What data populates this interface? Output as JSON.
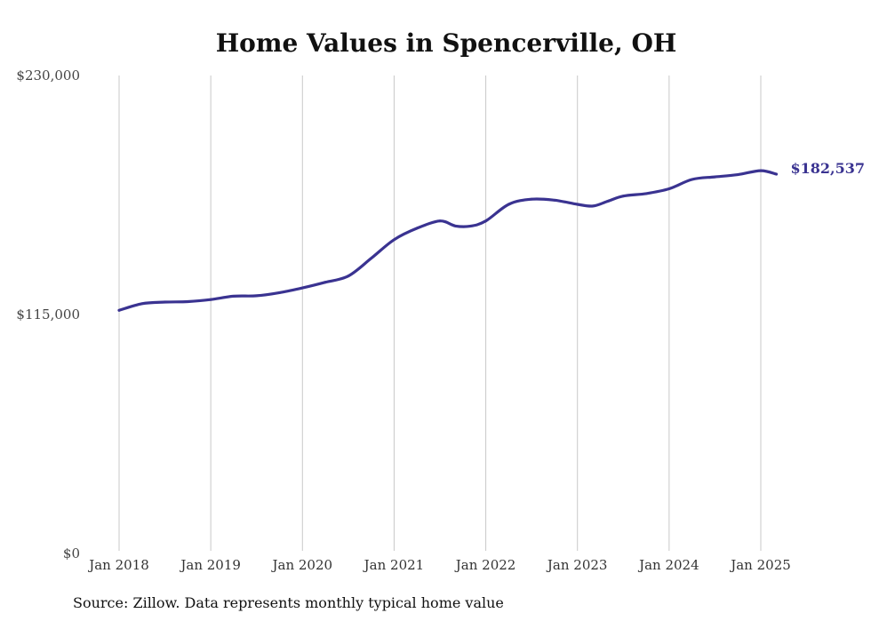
{
  "chart_data": {
    "type": "line",
    "title": "Home Values in Spencerville, OH",
    "xlabel": "",
    "ylabel": "",
    "ylim": [
      0,
      230000
    ],
    "y_ticks": [
      {
        "value": 0,
        "label": "$0"
      },
      {
        "value": 115000,
        "label": "$115,000"
      },
      {
        "value": 230000,
        "label": "$230,000"
      }
    ],
    "x_ticks": [
      {
        "value": 2018,
        "label": "Jan 2018"
      },
      {
        "value": 2019,
        "label": "Jan 2019"
      },
      {
        "value": 2020,
        "label": "Jan 2020"
      },
      {
        "value": 2021,
        "label": "Jan 2021"
      },
      {
        "value": 2022,
        "label": "Jan 2022"
      },
      {
        "value": 2023,
        "label": "Jan 2023"
      },
      {
        "value": 2024,
        "label": "Jan 2024"
      },
      {
        "value": 2025,
        "label": "Jan 2025"
      }
    ],
    "xlim": [
      2018,
      2025.17
    ],
    "grid": {
      "vertical": true,
      "horizontal": false
    },
    "end_label": "$182,537",
    "color": "#3a3391",
    "gridline_color": "#c8c8c8",
    "series": [
      {
        "x": [
          2018.0,
          2018.25,
          2018.5,
          2018.75,
          2019.0,
          2019.25,
          2019.5,
          2019.75,
          2020.0,
          2020.25,
          2020.5,
          2020.75,
          2021.0,
          2021.25,
          2021.5,
          2021.67,
          2021.83,
          2022.0,
          2022.25,
          2022.5,
          2022.75,
          2023.0,
          2023.17,
          2023.33,
          2023.5,
          2023.75,
          2024.0,
          2024.25,
          2024.5,
          2024.75,
          2025.0,
          2025.17
        ],
        "y": [
          117000,
          120200,
          121000,
          121200,
          122200,
          123800,
          124000,
          125500,
          127800,
          130500,
          133500,
          142000,
          151000,
          156500,
          160000,
          157600,
          157500,
          160000,
          168000,
          170500,
          170000,
          168000,
          167200,
          169500,
          172000,
          173200,
          175500,
          180000,
          181200,
          182300,
          184200,
          182537
        ]
      }
    ]
  },
  "source_note": "Source: Zillow. Data represents monthly typical home value"
}
